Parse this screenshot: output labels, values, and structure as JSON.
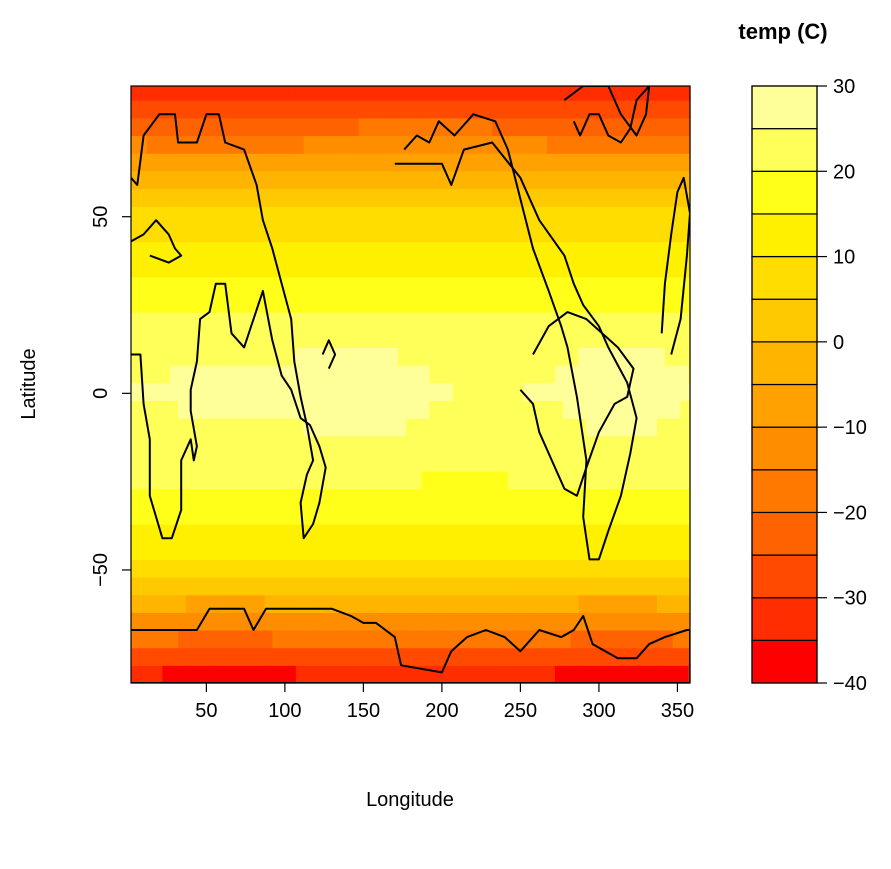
{
  "chart_data": {
    "type": "heatmap",
    "title": "",
    "xlabel": "Longitude",
    "ylabel": "Latitude",
    "xlim": [
      2,
      358
    ],
    "ylim": [
      -82,
      87
    ],
    "x_ticks": [
      50,
      100,
      150,
      200,
      250,
      300,
      350
    ],
    "x_tick_labels": [
      "50",
      "100",
      "150",
      "200",
      "250",
      "300",
      "350"
    ],
    "y_ticks": [
      -50,
      0,
      50
    ],
    "y_tick_labels": [
      "−50",
      "0",
      "50"
    ],
    "grid": false,
    "colorbar": {
      "title": "temp (C)",
      "range": [
        -40,
        30
      ],
      "levels": [
        -40,
        -35,
        -30,
        -25,
        -20,
        -15,
        -10,
        -5,
        0,
        5,
        10,
        15,
        20,
        25,
        30
      ],
      "colors": [
        "#FF0000",
        "#FF2D00",
        "#FF4A00",
        "#FF6200",
        "#FF7800",
        "#FF8D00",
        "#FFA100",
        "#FFB500",
        "#FFC900",
        "#FFDD00",
        "#FFF000",
        "#FFFF1A",
        "#FFFF5A",
        "#FFFF9A",
        "#FFFFDA"
      ],
      "ticks": [
        -40,
        -30,
        -20,
        -10,
        0,
        10,
        20,
        30
      ],
      "tick_labels": [
        "−40",
        "−30",
        "−20",
        "−10",
        "0",
        "10",
        "20",
        "30"
      ]
    },
    "field": {
      "latitude_profile": [
        [
          -82,
          -38
        ],
        [
          -75,
          -28
        ],
        [
          -65,
          -12
        ],
        [
          -55,
          2
        ],
        [
          -45,
          12
        ],
        [
          -30,
          19
        ],
        [
          -15,
          22
        ],
        [
          0,
          25
        ],
        [
          15,
          23
        ],
        [
          25,
          19
        ],
        [
          35,
          14
        ],
        [
          45,
          9
        ],
        [
          55,
          3
        ],
        [
          65,
          -8
        ],
        [
          75,
          -20
        ],
        [
          87,
          -34
        ]
      ],
      "warm_pool": {
        "center": [
          155,
          -2
        ],
        "peak": 29
      },
      "warm_spots": [
        {
          "center": [
            315,
            0
          ],
          "peak": 27
        }
      ]
    },
    "coastlines": [
      {
        "name": "south-america",
        "points": [
          [
            2,
            11
          ],
          [
            8,
            11
          ],
          [
            10,
            -3
          ],
          [
            14,
            -13
          ],
          [
            14,
            -29
          ],
          [
            22,
            -41
          ],
          [
            28,
            -41
          ],
          [
            34,
            -33
          ],
          [
            34,
            -19
          ],
          [
            40,
            -13
          ],
          [
            42,
            -19
          ],
          [
            44,
            -15
          ],
          [
            40,
            -5
          ],
          [
            40,
            1
          ],
          [
            44,
            9
          ],
          [
            46,
            21
          ],
          [
            52,
            23
          ],
          [
            56,
            31
          ],
          [
            62,
            31
          ],
          [
            66,
            17
          ],
          [
            74,
            13
          ],
          [
            86,
            29
          ],
          [
            92,
            15
          ],
          [
            98,
            5
          ],
          [
            104,
            1
          ],
          [
            110,
            -7
          ],
          [
            116,
            -9
          ],
          [
            122,
            -15
          ],
          [
            126,
            -21
          ],
          [
            122,
            -31
          ],
          [
            118,
            -37
          ],
          [
            112,
            -41
          ],
          [
            110,
            -31
          ],
          [
            114,
            -23
          ],
          [
            118,
            -19
          ],
          [
            114,
            -9
          ],
          [
            110,
            -1
          ],
          [
            106,
            9
          ],
          [
            104,
            21
          ],
          [
            98,
            31
          ],
          [
            92,
            41
          ],
          [
            86,
            49
          ],
          [
            82,
            59
          ],
          [
            74,
            69
          ],
          [
            62,
            71
          ],
          [
            58,
            79
          ],
          [
            50,
            79
          ],
          [
            44,
            71
          ],
          [
            32,
            71
          ],
          [
            30,
            79
          ],
          [
            20,
            79
          ],
          [
            10,
            73
          ],
          [
            6,
            59
          ],
          [
            2,
            61
          ]
        ]
      },
      {
        "name": "north-america",
        "points": [
          [
            170,
            65
          ],
          [
            200,
            65
          ],
          [
            206,
            59
          ],
          [
            214,
            69
          ],
          [
            232,
            71
          ],
          [
            250,
            61
          ],
          [
            262,
            49
          ],
          [
            278,
            39
          ],
          [
            284,
            31
          ],
          [
            290,
            25
          ],
          [
            300,
            19
          ],
          [
            306,
            13
          ],
          [
            318,
            3
          ],
          [
            324,
            -7
          ],
          [
            320,
            -17
          ],
          [
            314,
            -29
          ],
          [
            306,
            -39
          ],
          [
            300,
            -47
          ],
          [
            294,
            -47
          ],
          [
            290,
            -35
          ],
          [
            292,
            -19
          ],
          [
            286,
            -1
          ],
          [
            280,
            13
          ],
          [
            276,
            19
          ],
          [
            268,
            29
          ],
          [
            258,
            41
          ],
          [
            250,
            55
          ],
          [
            242,
            69
          ],
          [
            234,
            77
          ],
          [
            220,
            79
          ],
          [
            208,
            73
          ],
          [
            198,
            77
          ],
          [
            192,
            71
          ],
          [
            184,
            73
          ],
          [
            176,
            69
          ]
        ]
      },
      {
        "name": "greenland",
        "points": [
          [
            278,
            83
          ],
          [
            290,
            87
          ],
          [
            306,
            87
          ],
          [
            314,
            79
          ],
          [
            324,
            73
          ],
          [
            330,
            79
          ],
          [
            332,
            87
          ],
          [
            324,
            83
          ],
          [
            320,
            75
          ],
          [
            314,
            71
          ],
          [
            306,
            73
          ],
          [
            300,
            79
          ],
          [
            294,
            79
          ],
          [
            288,
            73
          ],
          [
            284,
            77
          ]
        ]
      },
      {
        "name": "australia",
        "points": [
          [
            250,
            1
          ],
          [
            258,
            -3
          ],
          [
            262,
            -11
          ],
          [
            270,
            -19
          ],
          [
            278,
            -27
          ],
          [
            286,
            -29
          ],
          [
            292,
            -21
          ],
          [
            300,
            -11
          ],
          [
            310,
            -3
          ],
          [
            318,
            -1
          ],
          [
            322,
            7
          ],
          [
            312,
            13
          ],
          [
            302,
            17
          ],
          [
            292,
            21
          ],
          [
            280,
            23
          ],
          [
            268,
            19
          ],
          [
            258,
            11
          ]
        ]
      },
      {
        "name": "island",
        "points": [
          [
            124,
            11
          ],
          [
            128,
            15
          ],
          [
            132,
            11
          ],
          [
            128,
            7
          ]
        ]
      },
      {
        "name": "arctic-rim",
        "points": [
          [
            2,
            43
          ],
          [
            10,
            45
          ],
          [
            18,
            49
          ],
          [
            26,
            45
          ],
          [
            30,
            41
          ],
          [
            34,
            39
          ],
          [
            26,
            37
          ],
          [
            14,
            39
          ]
        ]
      },
      {
        "name": "east-edge",
        "points": [
          [
            346,
            11
          ],
          [
            352,
            21
          ],
          [
            356,
            39
          ],
          [
            358,
            51
          ],
          [
            354,
            61
          ],
          [
            350,
            57
          ],
          [
            346,
            45
          ],
          [
            342,
            31
          ],
          [
            340,
            17
          ]
        ]
      },
      {
        "name": "antarctica",
        "points": [
          [
            2,
            -67
          ],
          [
            44,
            -67
          ],
          [
            52,
            -61
          ],
          [
            74,
            -61
          ],
          [
            80,
            -67
          ],
          [
            88,
            -61
          ],
          [
            130,
            -61
          ],
          [
            142,
            -63
          ],
          [
            150,
            -65
          ],
          [
            158,
            -65
          ],
          [
            170,
            -69
          ],
          [
            174,
            -77
          ],
          [
            200,
            -79
          ],
          [
            206,
            -73
          ],
          [
            216,
            -69
          ],
          [
            228,
            -67
          ],
          [
            240,
            -69
          ],
          [
            250,
            -73
          ],
          [
            262,
            -67
          ],
          [
            276,
            -69
          ],
          [
            284,
            -67
          ],
          [
            290,
            -63
          ],
          [
            296,
            -71
          ],
          [
            312,
            -75
          ],
          [
            324,
            -75
          ],
          [
            332,
            -71
          ],
          [
            342,
            -69
          ],
          [
            356,
            -67
          ],
          [
            358,
            -67
          ],
          [
            358,
            -82
          ],
          [
            2,
            -82
          ]
        ]
      }
    ]
  }
}
